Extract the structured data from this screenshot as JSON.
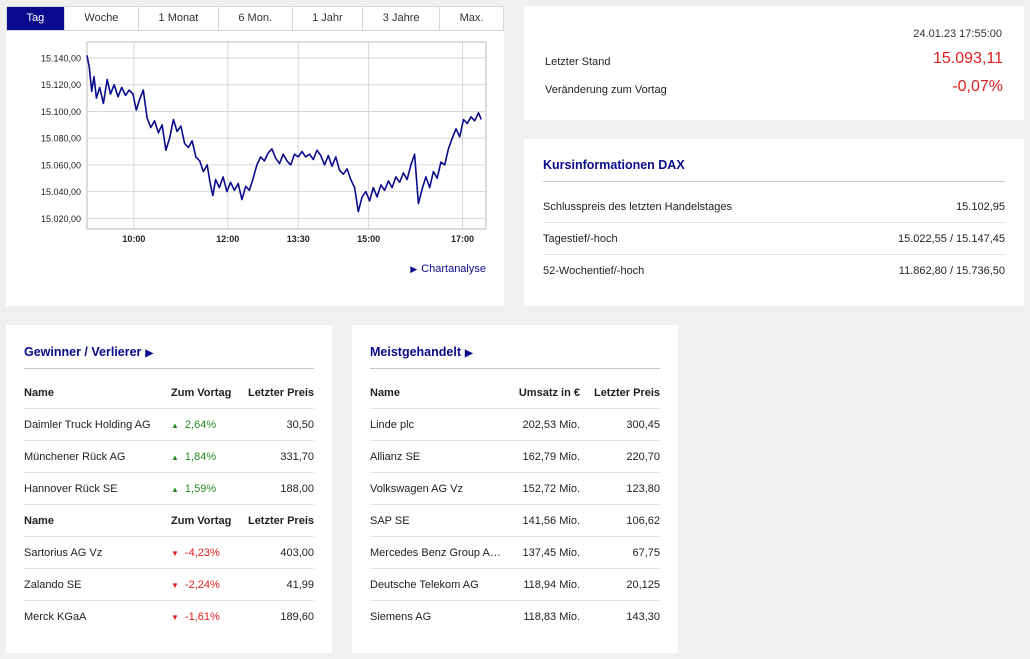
{
  "tabs": [
    "Tag",
    "Woche",
    "1 Monat",
    "6 Mon.",
    "1 Jahr",
    "3 Jahre",
    "Max."
  ],
  "active_tab": 0,
  "chart_link": "Chartanalyse",
  "colors": {
    "accent": "#0a0a8c",
    "negative": "#e02020",
    "positive": "#2a8a2a"
  },
  "chart_data": {
    "type": "line",
    "title": "",
    "xlabel": "",
    "ylabel": "",
    "x_tick_labels": [
      "10:00",
      "12:00",
      "13:30",
      "15:00",
      "17:00"
    ],
    "x_tick_hours": [
      10,
      12,
      13.5,
      15,
      17
    ],
    "y_ticks": [
      15020,
      15040,
      15060,
      15080,
      15100,
      15120,
      15140
    ],
    "y_tick_labels": [
      "15.020,00",
      "15.040,00",
      "15.060,00",
      "15.080,00",
      "15.100,00",
      "15.120,00",
      "15.140,00"
    ],
    "xlim": [
      9.0,
      17.5
    ],
    "ylim": [
      15012,
      15152
    ],
    "grid": true,
    "series": [
      {
        "values": [
          [
            9.0,
            15142
          ],
          [
            9.05,
            15133
          ],
          [
            9.1,
            15115
          ],
          [
            9.15,
            15126
          ],
          [
            9.2,
            15110
          ],
          [
            9.27,
            15118
          ],
          [
            9.35,
            15106
          ],
          [
            9.43,
            15124
          ],
          [
            9.5,
            15113
          ],
          [
            9.58,
            15120
          ],
          [
            9.66,
            15111
          ],
          [
            9.74,
            15118
          ],
          [
            9.82,
            15112
          ],
          [
            9.9,
            15116
          ],
          [
            9.98,
            15113
          ],
          [
            10.05,
            15101
          ],
          [
            10.12,
            15109
          ],
          [
            10.2,
            15116
          ],
          [
            10.28,
            15095
          ],
          [
            10.36,
            15088
          ],
          [
            10.44,
            15093
          ],
          [
            10.52,
            15084
          ],
          [
            10.6,
            15090
          ],
          [
            10.68,
            15071
          ],
          [
            10.76,
            15080
          ],
          [
            10.84,
            15094
          ],
          [
            10.92,
            15085
          ],
          [
            11.0,
            15089
          ],
          [
            11.08,
            15076
          ],
          [
            11.16,
            15073
          ],
          [
            11.24,
            15078
          ],
          [
            11.32,
            15066
          ],
          [
            11.4,
            15063
          ],
          [
            11.48,
            15055
          ],
          [
            11.56,
            15060
          ],
          [
            11.62,
            15047
          ],
          [
            11.68,
            15037
          ],
          [
            11.74,
            15049
          ],
          [
            11.82,
            15043
          ],
          [
            11.9,
            15051
          ],
          [
            11.98,
            15040
          ],
          [
            12.06,
            15047
          ],
          [
            12.14,
            15041
          ],
          [
            12.22,
            15046
          ],
          [
            12.3,
            15034
          ],
          [
            12.38,
            15044
          ],
          [
            12.46,
            15041
          ],
          [
            12.54,
            15050
          ],
          [
            12.62,
            15060
          ],
          [
            12.7,
            15066
          ],
          [
            12.78,
            15063
          ],
          [
            12.86,
            15069
          ],
          [
            12.94,
            15072
          ],
          [
            13.02,
            15065
          ],
          [
            13.1,
            15061
          ],
          [
            13.18,
            15068
          ],
          [
            13.26,
            15063
          ],
          [
            13.34,
            15060
          ],
          [
            13.42,
            15068
          ],
          [
            13.5,
            15066
          ],
          [
            13.58,
            15070
          ],
          [
            13.66,
            15066
          ],
          [
            13.74,
            15068
          ],
          [
            13.82,
            15064
          ],
          [
            13.9,
            15071
          ],
          [
            13.98,
            15067
          ],
          [
            14.06,
            15060
          ],
          [
            14.14,
            15067
          ],
          [
            14.22,
            15059
          ],
          [
            14.3,
            15066
          ],
          [
            14.38,
            15056
          ],
          [
            14.46,
            15053
          ],
          [
            14.54,
            15057
          ],
          [
            14.62,
            15049
          ],
          [
            14.7,
            15043
          ],
          [
            14.78,
            15025
          ],
          [
            14.86,
            15036
          ],
          [
            14.94,
            15040
          ],
          [
            15.02,
            15033
          ],
          [
            15.1,
            15043
          ],
          [
            15.18,
            15036
          ],
          [
            15.26,
            15045
          ],
          [
            15.34,
            15041
          ],
          [
            15.42,
            15048
          ],
          [
            15.5,
            15043
          ],
          [
            15.58,
            15051
          ],
          [
            15.66,
            15047
          ],
          [
            15.74,
            15054
          ],
          [
            15.82,
            15049
          ],
          [
            15.9,
            15060
          ],
          [
            15.98,
            15068
          ],
          [
            16.06,
            15031
          ],
          [
            16.14,
            15042
          ],
          [
            16.22,
            15051
          ],
          [
            16.3,
            15043
          ],
          [
            16.38,
            15055
          ],
          [
            16.46,
            15050
          ],
          [
            16.54,
            15062
          ],
          [
            16.62,
            15060
          ],
          [
            16.7,
            15072
          ],
          [
            16.78,
            15080
          ],
          [
            16.86,
            15087
          ],
          [
            16.94,
            15081
          ],
          [
            17.02,
            15094
          ],
          [
            17.1,
            15091
          ],
          [
            17.18,
            15096
          ],
          [
            17.26,
            15093
          ],
          [
            17.34,
            15099
          ],
          [
            17.4,
            15094
          ]
        ]
      }
    ]
  },
  "quote": {
    "timestamp": "24.01.23 17:55:00",
    "last_label": "Letzter Stand",
    "last_value": "15.093,11",
    "change_label": "Veränderung zum Vortag",
    "change_value": "-0,07%"
  },
  "info": {
    "title": "Kursinformationen DAX",
    "rows": [
      {
        "label": "Schlusspreis des letzten Handelstages",
        "value": "15.102,95"
      },
      {
        "label": "Tagestief/-hoch",
        "value": "15.022,55 / 15.147,45"
      },
      {
        "label": "52-Wochentief/-hoch",
        "value": "11.862,80 / 15.736,50"
      }
    ]
  },
  "gainers": {
    "title": "Gewinner / Verlierer",
    "header": {
      "name": "Name",
      "change": "Zum Vortag",
      "price": "Letzter Preis"
    },
    "winners": [
      {
        "name": "Daimler Truck Holding AG",
        "change": "2,64%",
        "price": "30,50"
      },
      {
        "name": "Münchener Rück AG",
        "change": "1,84%",
        "price": "331,70"
      },
      {
        "name": "Hannover Rück SE",
        "change": "1,59%",
        "price": "188,00"
      }
    ],
    "losers": [
      {
        "name": "Sartorius AG Vz",
        "change": "-4,23%",
        "price": "403,00"
      },
      {
        "name": "Zalando SE",
        "change": "-2,24%",
        "price": "41,99"
      },
      {
        "name": "Merck KGaA",
        "change": "-1,61%",
        "price": "189,60"
      }
    ]
  },
  "traded": {
    "title": "Meistgehandelt",
    "header": {
      "name": "Name",
      "volume": "Umsatz in €",
      "price": "Letzter Preis"
    },
    "rows": [
      {
        "name": "Linde plc",
        "volume": "202,53 Mio.",
        "price": "300,45"
      },
      {
        "name": "Allianz SE",
        "volume": "162,79 Mio.",
        "price": "220,70"
      },
      {
        "name": "Volkswagen AG Vz",
        "volume": "152,72 Mio.",
        "price": "123,80"
      },
      {
        "name": "SAP SE",
        "volume": "141,56 Mio.",
        "price": "106,62"
      },
      {
        "name": "Mercedes Benz Group AG...",
        "volume": "137,45 Mio.",
        "price": "67,75"
      },
      {
        "name": "Deutsche Telekom AG",
        "volume": "118,94 Mio.",
        "price": "20,125"
      },
      {
        "name": "Siemens AG",
        "volume": "118,83 Mio.",
        "price": "143,30"
      }
    ]
  }
}
